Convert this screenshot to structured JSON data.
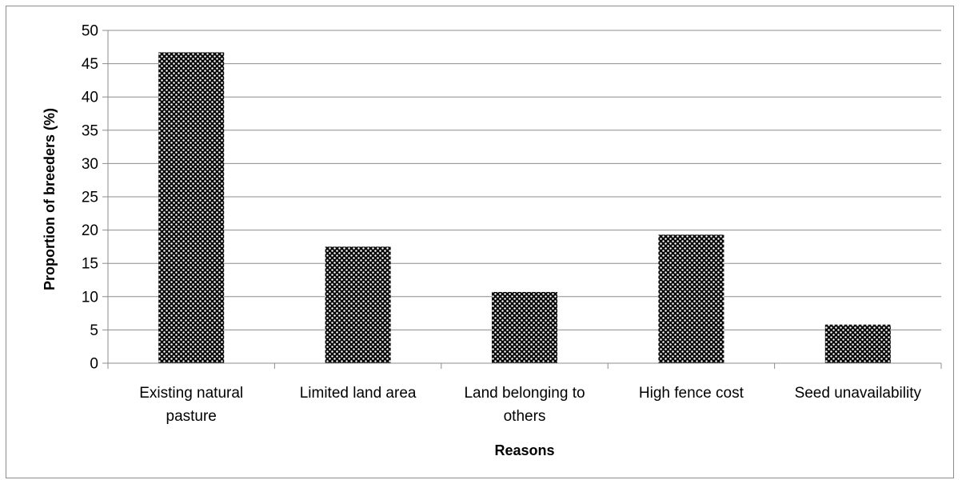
{
  "chart_data": {
    "type": "bar",
    "categories": [
      [
        "Existing natural",
        "pasture"
      ],
      [
        "Limited land area"
      ],
      [
        "Land belonging to",
        "others"
      ],
      [
        "High fence cost"
      ],
      [
        "Seed unavailability"
      ]
    ],
    "values": [
      46.7,
      17.5,
      10.7,
      19.3,
      5.8
    ],
    "xlabel": "Reasons",
    "ylabel": "Proportion  of breeders (%)",
    "ylim": [
      0,
      50
    ],
    "yticks": [
      0,
      5,
      10,
      15,
      20,
      25,
      30,
      35,
      40,
      45,
      50
    ],
    "grid": true,
    "legend": "none",
    "colors": {
      "bar_fill": "#000000",
      "bar_dots": "#ffffff",
      "grid": "#8c8c8c",
      "axis": "#8c8c8c"
    }
  }
}
